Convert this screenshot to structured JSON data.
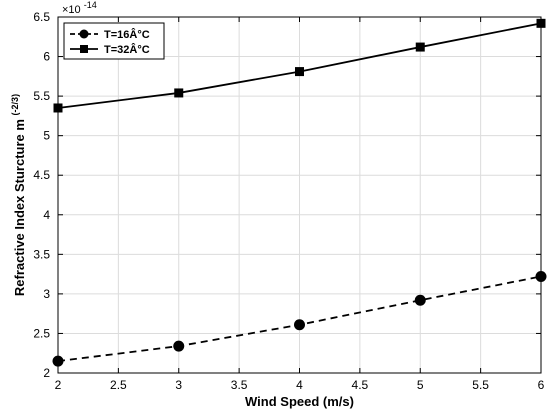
{
  "chart_data": {
    "type": "line",
    "xlabel": "Wind Speed (m/s)",
    "ylabel": "Refractive Index Sturcture m",
    "ylabel_superscript": "(-2/3)",
    "y_multiplier_base": "×10",
    "y_multiplier_exp": "-14",
    "xlim": [
      2,
      6
    ],
    "ylim": [
      2,
      6.5
    ],
    "xticks": [
      2,
      2.5,
      3,
      3.5,
      4,
      4.5,
      5,
      5.5,
      6
    ],
    "xtick_labels": [
      "2",
      "2.5",
      "3",
      "3.5",
      "4",
      "4.5",
      "5",
      "5.5",
      "6"
    ],
    "yticks": [
      2,
      2.5,
      3,
      3.5,
      4,
      4.5,
      5,
      5.5,
      6,
      6.5
    ],
    "ytick_labels": [
      "2",
      "2.5",
      "3",
      "3.5",
      "4",
      "4.5",
      "5",
      "5.5",
      "6",
      "6.5"
    ],
    "grid": true,
    "legend_position": "top-left",
    "x": [
      2,
      3,
      4,
      5,
      6
    ],
    "series": [
      {
        "name": "T=16Â°C",
        "values": [
          2.15,
          2.34,
          2.61,
          2.92,
          3.22
        ],
        "line_style": "dashed",
        "marker": "circle",
        "color": "#000000"
      },
      {
        "name": "T=32Â°C",
        "values": [
          5.35,
          5.54,
          5.81,
          6.12,
          6.42
        ],
        "line_style": "solid",
        "marker": "square",
        "color": "#000000"
      }
    ]
  }
}
